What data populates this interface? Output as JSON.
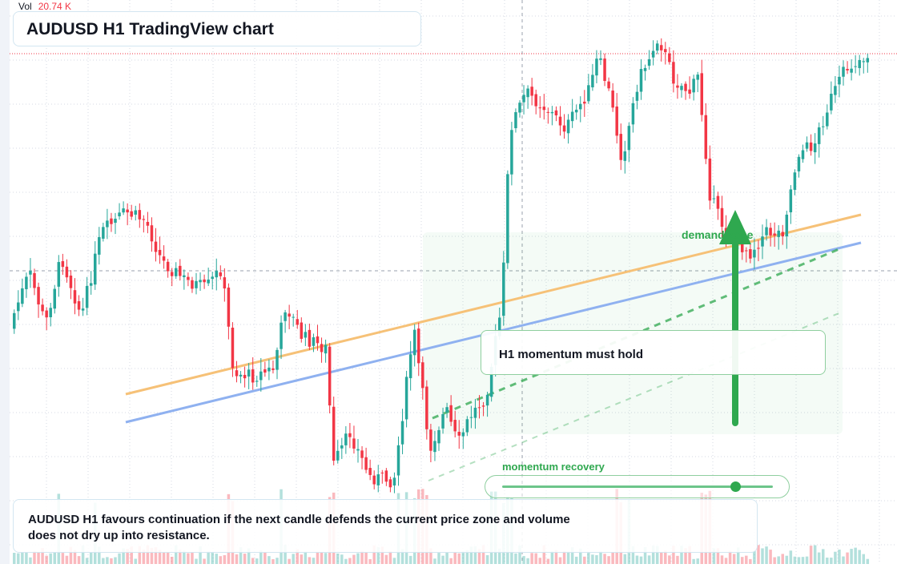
{
  "header": {
    "vol_label": "Vol",
    "vol_value": "20.74 K",
    "title": "AUDUSD H1 TradingView chart"
  },
  "annotations": {
    "callout": "H1 momentum must hold",
    "demand_label": "demand zone",
    "momentum_label": "momentum recovery",
    "momentum_level": 0.86,
    "summary": "AUDUSD H1 favours continuation if the next candle defends the current price zone and volume does not dry up into resistance."
  },
  "colors": {
    "up": "#26a69a",
    "down": "#f23645",
    "trend_orange": "#f6c177",
    "trend_blue": "#8fb1f0",
    "accent_green": "#2fa84f",
    "grid": "#d6dae3"
  },
  "chart_data": {
    "type": "candlestick",
    "timeframe": "H1",
    "symbol": "AUDUSD",
    "seed": 7
  }
}
